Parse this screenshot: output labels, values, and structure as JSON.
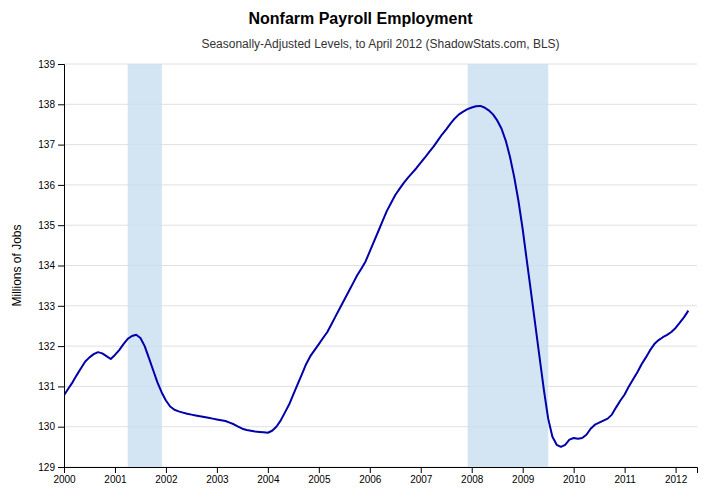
{
  "chart_data": {
    "type": "line",
    "title": "Nonfarm Payroll Employment",
    "subtitle": "Seasonally-Adjusted Levels, to April 2012 (ShadowStats.com, BLS)",
    "y_label": "Millions of Jobs",
    "color": "#0000AA",
    "grid": true,
    "xlim": [
      2000.0,
      2012.42
    ],
    "xticks": [
      2000,
      2001,
      2002,
      2003,
      2004,
      2005,
      2006,
      2007,
      2008,
      2009,
      2010,
      2011,
      2012
    ],
    "ylim": [
      129,
      139
    ],
    "yticks": [
      129,
      130,
      131,
      132,
      133,
      134,
      135,
      136,
      137,
      138,
      139
    ],
    "recessions": [
      {
        "start": 2001.25,
        "end": 2001.92,
        "color": "#c8dff0"
      },
      {
        "start": 2007.92,
        "end": 2009.5,
        "color": "#c8dff0"
      }
    ],
    "x": [
      2000.0,
      2000.083,
      2000.167,
      2000.25,
      2000.333,
      2000.417,
      2000.5,
      2000.583,
      2000.667,
      2000.75,
      2000.833,
      2000.917,
      2001.0,
      2001.083,
      2001.167,
      2001.25,
      2001.333,
      2001.417,
      2001.5,
      2001.583,
      2001.667,
      2001.75,
      2001.833,
      2001.917,
      2002.0,
      2002.083,
      2002.167,
      2002.25,
      2002.333,
      2002.417,
      2002.5,
      2002.583,
      2002.667,
      2002.75,
      2002.833,
      2002.917,
      2003.0,
      2003.083,
      2003.167,
      2003.25,
      2003.333,
      2003.417,
      2003.5,
      2003.583,
      2003.667,
      2003.75,
      2003.833,
      2003.917,
      2004.0,
      2004.083,
      2004.167,
      2004.25,
      2004.333,
      2004.417,
      2004.5,
      2004.583,
      2004.667,
      2004.75,
      2004.833,
      2004.917,
      2005.0,
      2005.083,
      2005.167,
      2005.25,
      2005.333,
      2005.417,
      2005.5,
      2005.583,
      2005.667,
      2005.75,
      2005.833,
      2005.917,
      2006.0,
      2006.083,
      2006.167,
      2006.25,
      2006.333,
      2006.417,
      2006.5,
      2006.583,
      2006.667,
      2006.75,
      2006.833,
      2006.917,
      2007.0,
      2007.083,
      2007.167,
      2007.25,
      2007.333,
      2007.417,
      2007.5,
      2007.583,
      2007.667,
      2007.75,
      2007.833,
      2007.917,
      2008.0,
      2008.083,
      2008.167,
      2008.25,
      2008.333,
      2008.417,
      2008.5,
      2008.583,
      2008.667,
      2008.75,
      2008.833,
      2008.917,
      2009.0,
      2009.083,
      2009.167,
      2009.25,
      2009.333,
      2009.417,
      2009.5,
      2009.583,
      2009.667,
      2009.75,
      2009.833,
      2009.917,
      2010.0,
      2010.083,
      2010.167,
      2010.25,
      2010.333,
      2010.417,
      2010.5,
      2010.583,
      2010.667,
      2010.75,
      2010.833,
      2010.917,
      2011.0,
      2011.083,
      2011.167,
      2011.25,
      2011.333,
      2011.417,
      2011.5,
      2011.583,
      2011.667,
      2011.75,
      2011.833,
      2011.917,
      2012.0,
      2012.083,
      2012.167,
      2012.25
    ],
    "values": [
      130.78,
      130.94,
      131.1,
      131.28,
      131.45,
      131.62,
      131.72,
      131.8,
      131.85,
      131.82,
      131.75,
      131.68,
      131.78,
      131.9,
      132.05,
      132.18,
      132.25,
      132.28,
      132.2,
      132.0,
      131.7,
      131.4,
      131.1,
      130.85,
      130.65,
      130.5,
      130.42,
      130.38,
      130.35,
      130.32,
      130.3,
      130.28,
      130.26,
      130.24,
      130.22,
      130.2,
      130.18,
      130.16,
      130.14,
      130.1,
      130.06,
      130.0,
      129.95,
      129.92,
      129.9,
      129.88,
      129.87,
      129.86,
      129.85,
      129.9,
      130.0,
      130.15,
      130.35,
      130.55,
      130.8,
      131.05,
      131.3,
      131.55,
      131.75,
      131.9,
      132.05,
      132.2,
      132.35,
      132.55,
      132.75,
      132.95,
      133.15,
      133.35,
      133.55,
      133.75,
      133.92,
      134.1,
      134.35,
      134.6,
      134.85,
      135.1,
      135.35,
      135.55,
      135.75,
      135.9,
      136.05,
      136.18,
      136.3,
      136.42,
      136.55,
      136.68,
      136.82,
      136.95,
      137.1,
      137.25,
      137.38,
      137.52,
      137.65,
      137.75,
      137.82,
      137.88,
      137.92,
      137.95,
      137.96,
      137.92,
      137.85,
      137.75,
      137.6,
      137.4,
      137.1,
      136.7,
      136.2,
      135.6,
      134.9,
      134.1,
      133.3,
      132.5,
      131.7,
      130.9,
      130.2,
      129.75,
      129.55,
      129.5,
      129.55,
      129.68,
      129.72,
      129.7,
      129.72,
      129.8,
      129.95,
      130.05,
      130.1,
      130.15,
      130.2,
      130.3,
      130.48,
      130.65,
      130.8,
      131.0,
      131.18,
      131.35,
      131.55,
      131.72,
      131.9,
      132.05,
      132.15,
      132.22,
      132.28,
      132.35,
      132.45,
      132.58,
      132.72,
      132.88
    ]
  }
}
